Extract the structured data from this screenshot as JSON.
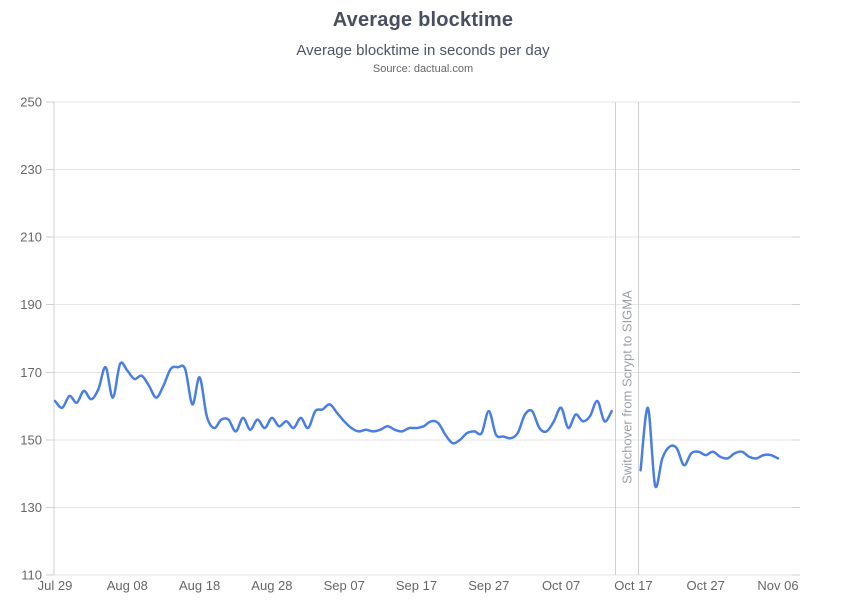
{
  "chart_data": {
    "type": "line",
    "title": "Average blocktime",
    "subtitle": "Average blocktime in seconds per day",
    "source": "Source: dactual.com",
    "xlabel": "",
    "ylabel": "",
    "ylim": [
      110,
      250
    ],
    "y_ticks": [
      110,
      130,
      150,
      170,
      190,
      210,
      230,
      250
    ],
    "x_total_days": 100,
    "x_ticks": [
      {
        "day": 0,
        "label": "Jul 29"
      },
      {
        "day": 10,
        "label": "Aug 08"
      },
      {
        "day": 20,
        "label": "Aug 18"
      },
      {
        "day": 30,
        "label": "Aug 28"
      },
      {
        "day": 40,
        "label": "Sep 07"
      },
      {
        "day": 50,
        "label": "Sep 17"
      },
      {
        "day": 60,
        "label": "Sep 27"
      },
      {
        "day": 70,
        "label": "Oct 07"
      },
      {
        "day": 80,
        "label": "Oct 17"
      },
      {
        "day": 90,
        "label": "Oct 27"
      },
      {
        "day": 100,
        "label": "Nov 06"
      }
    ],
    "grid": "horizontal-only",
    "legend": "none",
    "plot_band": {
      "from_day": 77.5,
      "to_day": 80.7,
      "label": "Switchover from Scrypt to SIGMA"
    },
    "series": [
      {
        "name": "Average blocktime (seconds)",
        "color": "#4a7ee3",
        "segments": [
          [
            [
              0,
              161.5
            ],
            [
              1,
              159.5
            ],
            [
              2,
              163
            ],
            [
              3,
              161
            ],
            [
              4,
              164.5
            ],
            [
              5,
              162
            ],
            [
              6,
              165
            ],
            [
              7,
              171.5
            ],
            [
              8,
              162.5
            ],
            [
              9,
              172.5
            ],
            [
              10,
              170.5
            ],
            [
              11,
              168
            ],
            [
              12,
              169
            ],
            [
              13,
              166
            ],
            [
              14,
              162.5
            ],
            [
              15,
              166
            ],
            [
              16,
              171
            ],
            [
              17,
              171.5
            ],
            [
              18,
              171
            ],
            [
              19,
              160.5
            ],
            [
              20,
              168.5
            ],
            [
              21,
              157
            ],
            [
              22,
              153.5
            ],
            [
              23,
              156
            ],
            [
              24,
              156
            ],
            [
              25,
              152.5
            ],
            [
              26,
              156.5
            ],
            [
              27,
              153
            ],
            [
              28,
              156
            ],
            [
              29,
              153.5
            ],
            [
              30,
              156.5
            ],
            [
              31,
              154
            ],
            [
              32,
              155.5
            ],
            [
              33,
              153.5
            ],
            [
              34,
              156.5
            ],
            [
              35,
              153.5
            ],
            [
              36,
              158.5
            ],
            [
              37,
              159
            ],
            [
              38,
              160.5
            ],
            [
              39,
              158
            ],
            [
              40,
              155.5
            ],
            [
              41,
              153.5
            ],
            [
              42,
              152.5
            ],
            [
              43,
              153
            ],
            [
              44,
              152.5
            ],
            [
              45,
              153
            ],
            [
              46,
              154
            ],
            [
              47,
              153
            ],
            [
              48,
              152.5
            ],
            [
              49,
              153.5
            ],
            [
              50,
              153.5
            ],
            [
              51,
              154
            ],
            [
              52,
              155.5
            ],
            [
              53,
              155
            ],
            [
              54,
              151.5
            ],
            [
              55,
              149
            ],
            [
              56,
              150
            ],
            [
              57,
              152
            ],
            [
              58,
              152.5
            ],
            [
              59,
              152
            ],
            [
              60,
              158.5
            ],
            [
              61,
              151.5
            ],
            [
              62,
              151
            ],
            [
              63,
              150.5
            ],
            [
              64,
              152
            ],
            [
              65,
              157.5
            ],
            [
              66,
              158.5
            ],
            [
              67,
              153.5
            ],
            [
              68,
              152.5
            ],
            [
              69,
              155.5
            ],
            [
              70,
              159.5
            ],
            [
              71,
              153.5
            ],
            [
              72,
              157.5
            ],
            [
              73,
              155.5
            ],
            [
              74,
              157
            ],
            [
              75,
              161.5
            ],
            [
              76,
              155.5
            ],
            [
              77,
              158.5
            ]
          ],
          [
            [
              81,
              141
            ],
            [
              82,
              159.5
            ],
            [
              83,
              136.5
            ],
            [
              84,
              144.5
            ],
            [
              85,
              148
            ],
            [
              86,
              147.5
            ],
            [
              87,
              142.5
            ],
            [
              88,
              146
            ],
            [
              89,
              146.5
            ],
            [
              90,
              145.5
            ],
            [
              91,
              146.5
            ],
            [
              92,
              145
            ],
            [
              93,
              144.5
            ],
            [
              94,
              146
            ],
            [
              95,
              146.5
            ],
            [
              96,
              145
            ],
            [
              97,
              144.5
            ],
            [
              98,
              145.5
            ],
            [
              99,
              145.5
            ],
            [
              100,
              144.5
            ]
          ]
        ]
      }
    ],
    "colors": {
      "line": "#4a7ee3",
      "grid": "#e6e6e6",
      "axis_line": "#ccd1d6",
      "tick": "#ccd1d6",
      "axis_label": "#666666",
      "band_line": "#cfcfcf",
      "band_label": "#9a9fa5",
      "title": "#474f60",
      "subtitle": "#4d5464",
      "source": "#666666"
    }
  }
}
